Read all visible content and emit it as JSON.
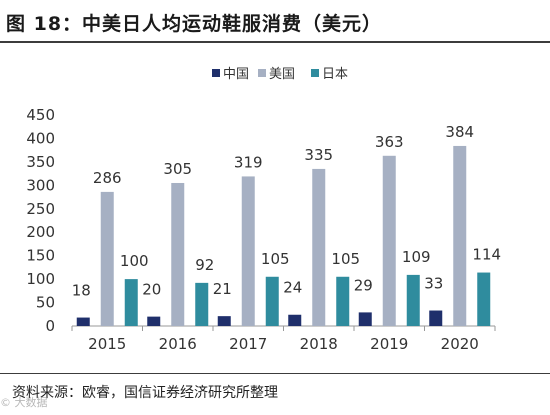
{
  "figure_title": "图 18：中美日人均运动鞋服消费（美元）",
  "source": "资料来源：欧睿，国信证券经济研究所整理",
  "watermark": "© 大数据",
  "colors": {
    "china": "#1f2f6b",
    "usa": "#a6b0c3",
    "japan": "#2f8c9e",
    "axis": "#999999",
    "text": "#333333"
  },
  "chart_data": {
    "type": "bar",
    "title": "图 18：中美日人均运动鞋服消费（美元）",
    "xlabel": "",
    "ylabel": "",
    "categories": [
      "2015",
      "2016",
      "2017",
      "2018",
      "2019",
      "2020"
    ],
    "series": [
      {
        "name": "中国",
        "values": [
          18,
          20,
          21,
          24,
          29,
          33
        ]
      },
      {
        "name": "美国",
        "values": [
          286,
          305,
          319,
          335,
          363,
          384
        ]
      },
      {
        "name": "日本",
        "values": [
          100,
          92,
          105,
          105,
          109,
          114
        ]
      }
    ],
    "ylim": [
      0,
      450
    ],
    "yticks": [
      0,
      50,
      100,
      150,
      200,
      250,
      300,
      350,
      400,
      450
    ],
    "legend_position": "top-center",
    "grid": false
  }
}
